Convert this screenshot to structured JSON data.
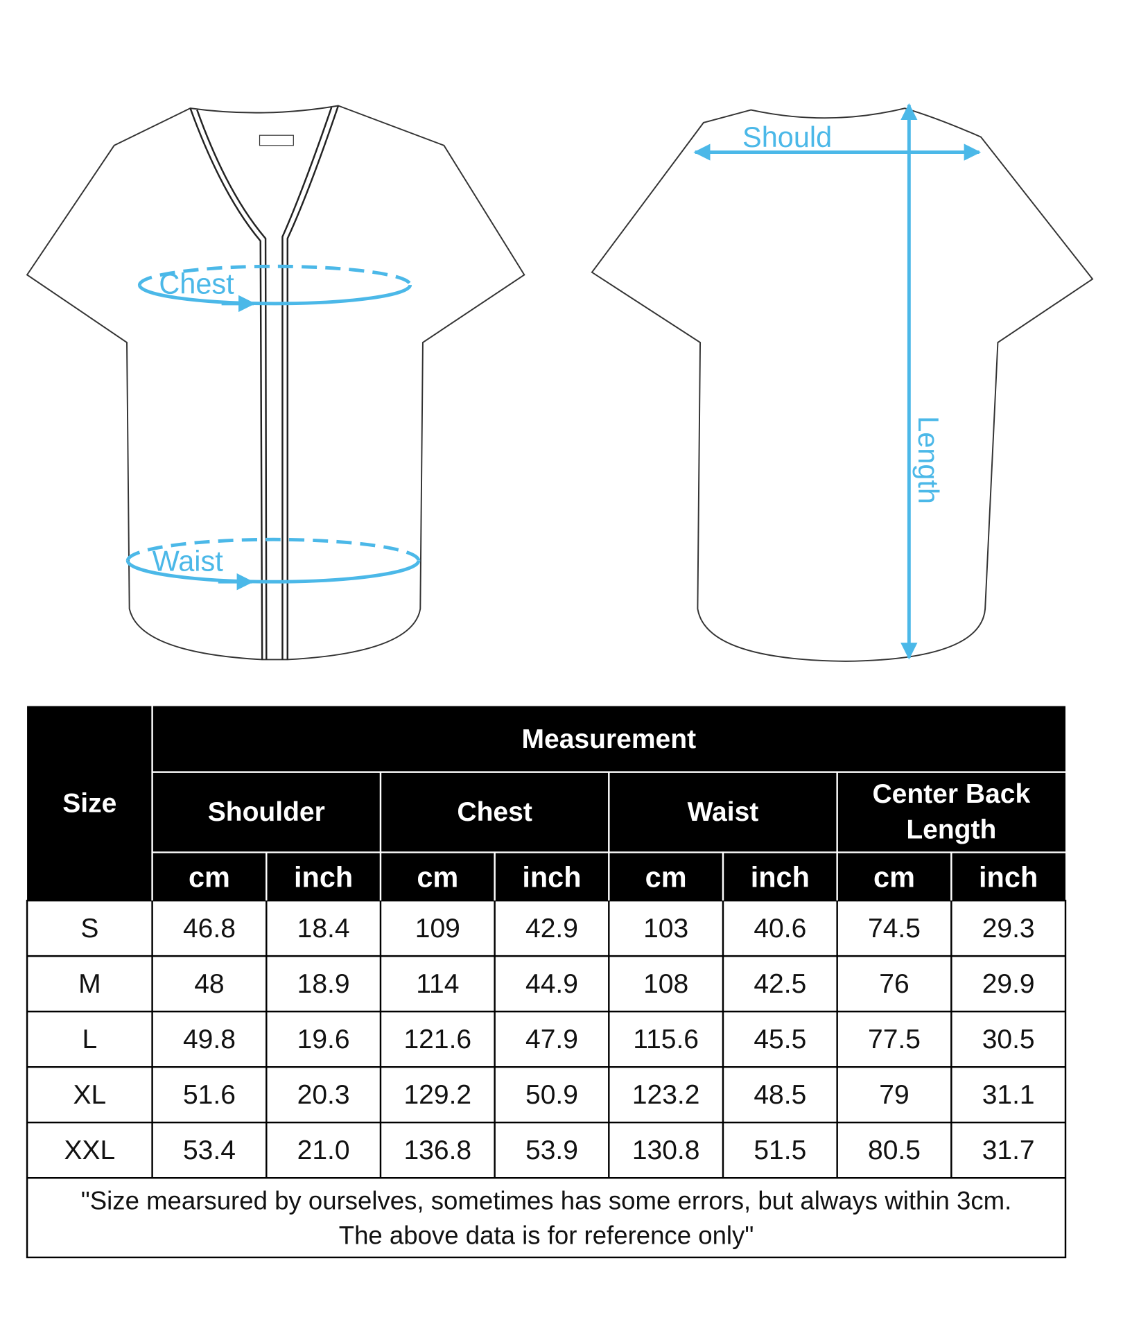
{
  "diagram": {
    "front_labels": [
      "Chest",
      "Waist"
    ],
    "back_labels": [
      "Should",
      "Length"
    ]
  },
  "table": {
    "size_header": "Size",
    "measurement_header": "Measurement",
    "groups": [
      [
        "Shoulder"
      ],
      [
        "Chest"
      ],
      [
        "Waist"
      ],
      [
        "Center Back",
        "Length"
      ]
    ],
    "units": [
      "cm",
      "inch",
      "cm",
      "inch",
      "cm",
      "inch",
      "cm",
      "inch"
    ],
    "rows": [
      [
        "S",
        "46.8",
        "18.4",
        "109",
        "42.9",
        "103",
        "40.6",
        "74.5",
        "29.3"
      ],
      [
        "M",
        "48",
        "18.9",
        "114",
        "44.9",
        "108",
        "42.5",
        "76",
        "29.9"
      ],
      [
        "L",
        "49.8",
        "19.6",
        "121.6",
        "47.9",
        "115.6",
        "45.5",
        "77.5",
        "30.5"
      ],
      [
        "XL",
        "51.6",
        "20.3",
        "129.2",
        "50.9",
        "123.2",
        "48.5",
        "79",
        "31.1"
      ],
      [
        "XXL",
        "53.4",
        "21.0",
        "136.8",
        "53.9",
        "130.8",
        "51.5",
        "80.5",
        "31.7"
      ]
    ],
    "note": [
      "\"Size mearsured by ourselves, sometimes has some errors, but always within 3cm.",
      "The above data is for reference only\""
    ]
  }
}
